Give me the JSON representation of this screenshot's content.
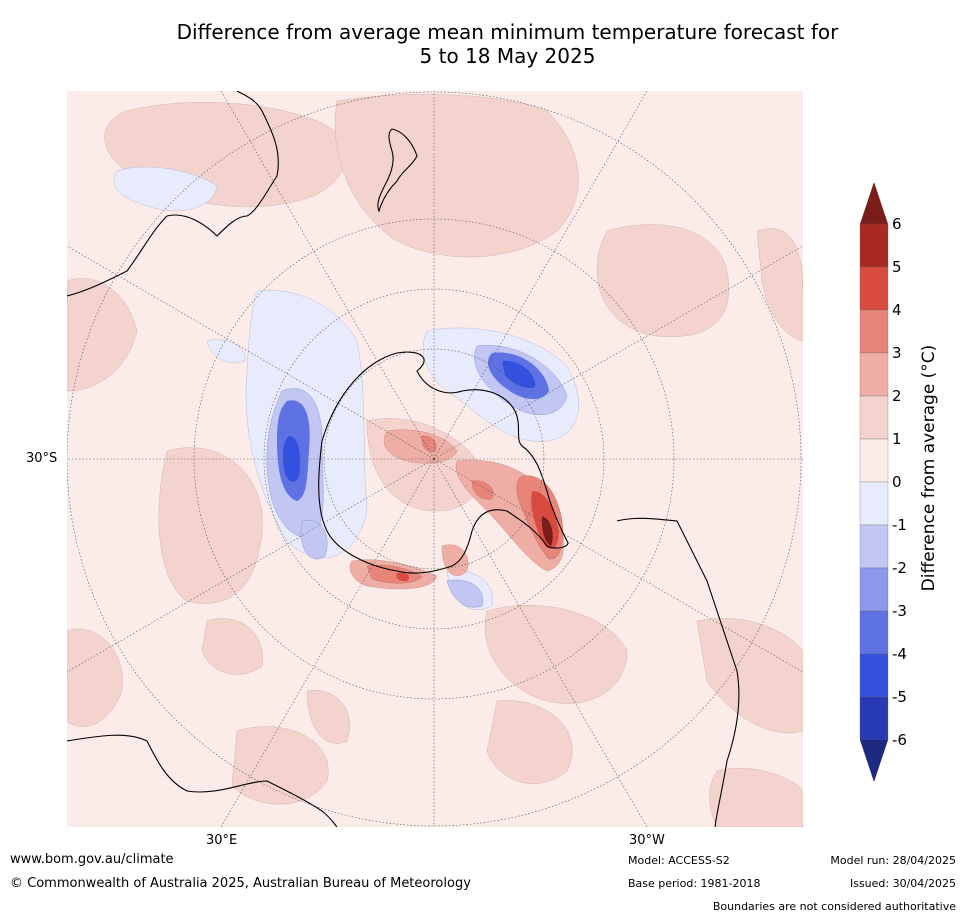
{
  "title_line1": "Difference from average mean minimum temperature forecast for",
  "title_line2": "5 to 18 May 2025",
  "lat_label": "30°S",
  "lon_labels": {
    "east": "30°E",
    "west": "30°W"
  },
  "colorbar": {
    "label": "Difference from average (°C)",
    "ticks": [
      "6",
      "5",
      "4",
      "3",
      "2",
      "1",
      "0",
      "-1",
      "-2",
      "-3",
      "-4",
      "-5",
      "-6"
    ],
    "colors_warm": [
      "#7a1c17",
      "#a92a23",
      "#d94b3f",
      "#e8857b",
      "#eeaea6",
      "#f4d3cf",
      "#fbece9"
    ],
    "colors_cool": [
      "#e8ebfb",
      "#c1c7f2",
      "#8c99eb",
      "#5f72e4",
      "#3351dd",
      "#273ab3",
      "#1d2a80"
    ]
  },
  "footer": {
    "url": "www.bom.gov.au/climate",
    "copyright": "© Commonwealth of Australia 2025, Australian Bureau of Meteorology",
    "model": "Model: ACCESS-S2",
    "base_period": "Base period: 1981-2018",
    "model_run": "Model run: 28/04/2025",
    "issued": "Issued: 30/04/2025",
    "disclaimer": "Boundaries are not considered authoritative"
  }
}
